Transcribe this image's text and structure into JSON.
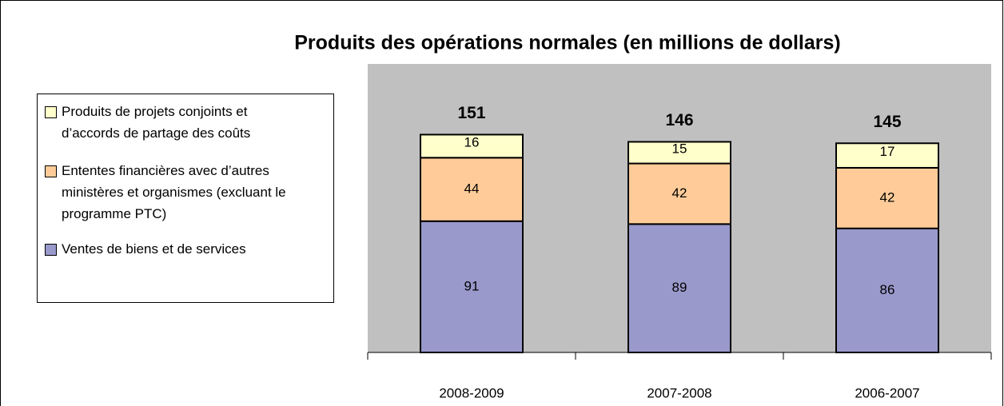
{
  "chart_data": {
    "type": "stacked_bar",
    "title": "Produits des opérations normales (en millions de dollars)",
    "categories": [
      "2008-2009",
      "2007-2008",
      "2006-2007"
    ],
    "series": [
      {
        "name": "Ventes de biens et de services",
        "color": "#9999cc",
        "values": [
          91,
          89,
          86
        ]
      },
      {
        "name": "Ententes financières avec d’autres ministères et organismes (excluant le programme PTC)",
        "color": "#ffcc99",
        "values": [
          44,
          42,
          42
        ]
      },
      {
        "name": "Produits de projets conjoints et d’accords de partage des coûts",
        "color": "#ffffcc",
        "values": [
          16,
          15,
          17
        ]
      }
    ],
    "totals": [
      151,
      146,
      145
    ],
    "ylim": [
      0,
      200
    ],
    "plot_background": "#c0c0c0"
  }
}
